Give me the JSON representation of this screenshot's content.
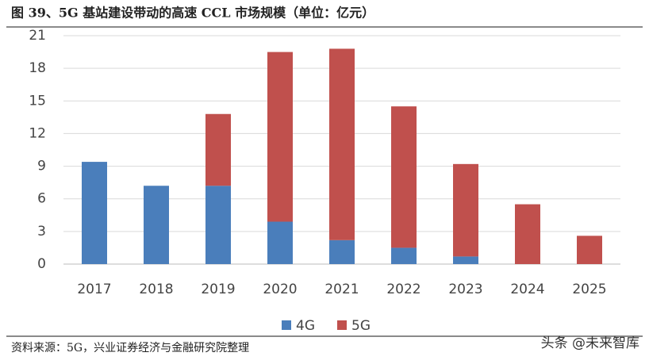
{
  "chart_data": {
    "type": "stacked_bar",
    "title": "图 39、5G 基站建设带动的高速 CCL 市场规模（单位：亿元）",
    "categories": [
      "2017",
      "2018",
      "2019",
      "2020",
      "2021",
      "2022",
      "2023",
      "2024",
      "2025"
    ],
    "series": [
      {
        "name": "4G",
        "color": "#4a7ebb",
        "values": [
          9.4,
          7.2,
          7.2,
          3.9,
          2.2,
          1.5,
          0.7,
          0,
          0
        ]
      },
      {
        "name": "5G",
        "color": "#c0504d",
        "values": [
          0,
          0,
          6.6,
          15.6,
          17.6,
          13.0,
          8.5,
          5.5,
          2.6
        ]
      }
    ],
    "ylim": [
      0,
      21
    ],
    "yticks": [
      0,
      3,
      6,
      9,
      12,
      15,
      18,
      21
    ],
    "grid": true,
    "legend": "bottom",
    "source": "资料来源：5G，兴业证券经济与金融研究院整理",
    "watermark": "头条 @未来智库"
  }
}
